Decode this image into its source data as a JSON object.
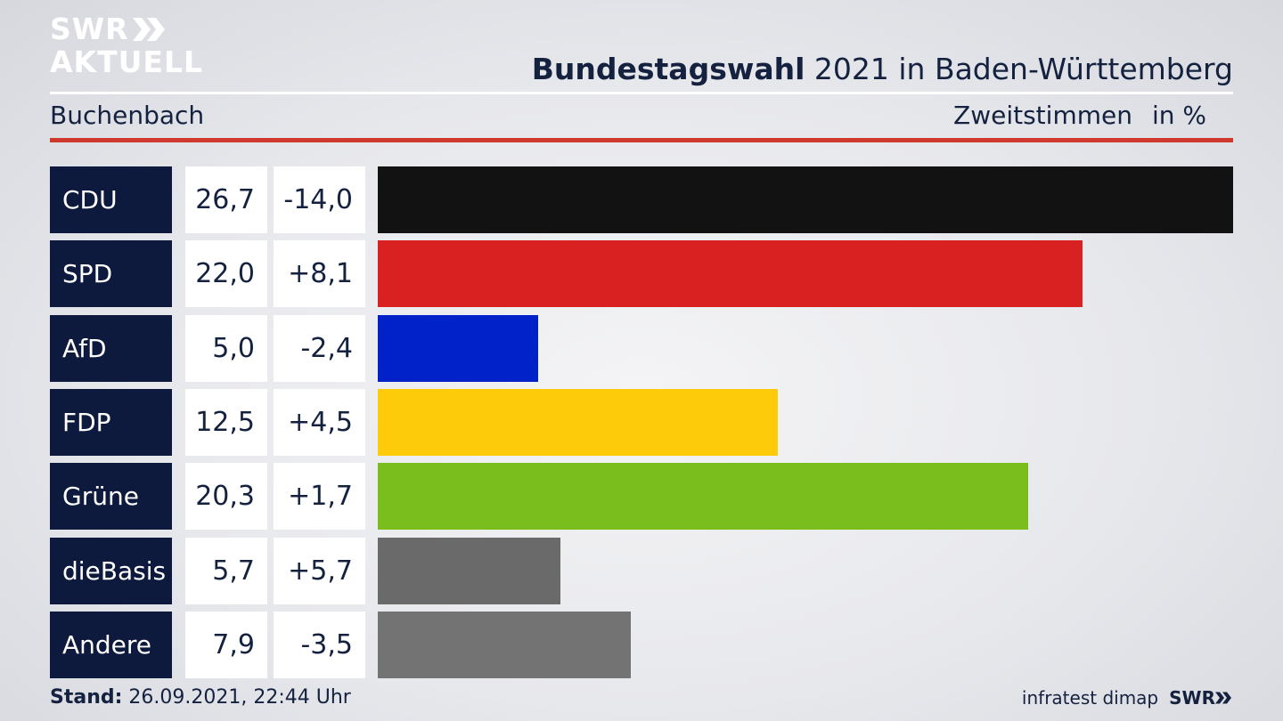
{
  "logo": {
    "line1": "SWR",
    "line2": "AKTUELL"
  },
  "header": {
    "title_bold": "Bundestagswahl",
    "title_rest": " 2021 in Baden-Württemberg",
    "location": "Buchenbach",
    "measure": "Zweitstimmen",
    "unit": "in %"
  },
  "chart_data": {
    "type": "bar",
    "orientation": "horizontal",
    "title": "Bundestagswahl 2021 in Baden-Württemberg",
    "categories": [
      "CDU",
      "SPD",
      "AfD",
      "FDP",
      "Grüne",
      "dieBasis",
      "Andere"
    ],
    "values": [
      26.7,
      22.0,
      5.0,
      12.5,
      20.3,
      5.7,
      7.9
    ],
    "value_labels": [
      "26,7",
      "22,0",
      "5,0",
      "12,5",
      "20,3",
      "5,7",
      "7,9"
    ],
    "changes": [
      -14.0,
      8.1,
      -2.4,
      4.5,
      1.7,
      5.7,
      -3.5
    ],
    "change_labels": [
      "-14,0",
      "+8,1",
      "-2,4",
      "+4,5",
      "+1,7",
      "+5,7",
      "-3,5"
    ],
    "colors": [
      "#121212",
      "#d92121",
      "#0022c8",
      "#fecb0a",
      "#79be1d",
      "#6a6a6a",
      "#737373"
    ],
    "xlim": [
      0,
      26.7
    ],
    "grid": false
  },
  "footer": {
    "stand_label": "Stand:",
    "stand_value": " 26.09.2021, 22:44 Uhr",
    "source": "infratest dimap",
    "brand": "SWR"
  }
}
